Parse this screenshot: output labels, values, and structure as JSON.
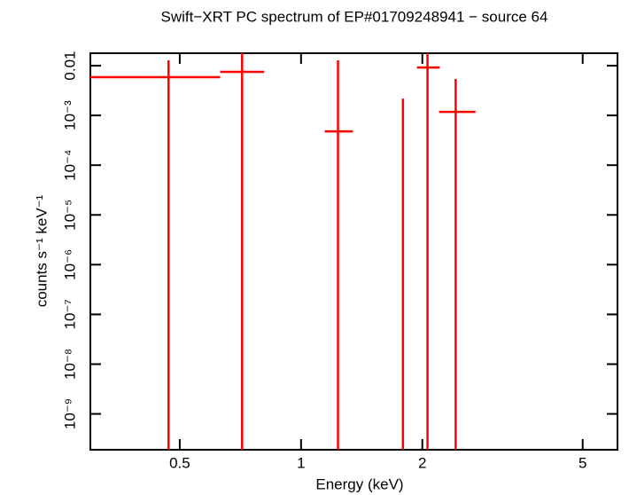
{
  "chart_data": {
    "type": "errorbar",
    "title": "Swift−XRT PC spectrum of EP#01709248941 − source 64",
    "xlabel": "Energy (keV)",
    "ylabel": "counts s⁻¹ keV⁻¹",
    "xscale": "log",
    "yscale": "log",
    "xlim": [
      0.3,
      6.1
    ],
    "ylim": [
      1.9e-10,
      0.0178
    ],
    "xticks": [
      0.5,
      1,
      2,
      5
    ],
    "yticks": [
      0.01,
      {
        "value": 0.001,
        "label": "10⁻³"
      },
      {
        "value": 0.0001,
        "label": "10⁻⁴"
      },
      {
        "value": 1e-05,
        "label": "10⁻⁵"
      },
      {
        "value": 1e-06,
        "label": "10⁻⁶"
      },
      {
        "value": 1e-07,
        "label": "10⁻⁷"
      },
      {
        "value": 1e-08,
        "label": "10⁻⁸"
      },
      {
        "value": 1e-09,
        "label": "10⁻⁹"
      }
    ],
    "color": "#ff0000",
    "x": [
      0.469,
      0.714,
      1.235,
      1.79,
      2.06,
      2.42
    ],
    "x_lo": [
      0.3,
      0.63,
      1.145,
      1.76,
      1.94,
      2.2
    ],
    "x_hi": [
      0.63,
      0.81,
      1.345,
      1.82,
      2.21,
      2.71
    ],
    "values": [
      0.00586,
      0.0075,
      0.000477,
      0,
      0.0092,
      0.00118
    ],
    "y_lo": [
      0,
      0,
      0,
      0,
      0,
      0
    ],
    "y_hi": [
      0.0128,
      0.02,
      0.0128,
      0.00218,
      0.02,
      0.0054
    ]
  }
}
